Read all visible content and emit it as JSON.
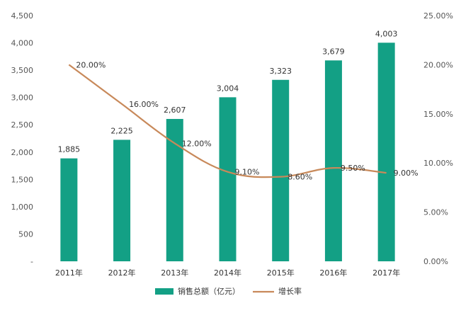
{
  "chart_data": {
    "type": "bar",
    "title": "",
    "categories": [
      "2011年",
      "2012年",
      "2013年",
      "2014年",
      "2015年",
      "2016年",
      "2017年"
    ],
    "series": [
      {
        "name": "销售总额（亿元）",
        "kind": "bar",
        "axis": "left",
        "color": "#13a085",
        "values": [
          1885,
          2225,
          2607,
          3004,
          3323,
          3679,
          4003
        ],
        "labels": [
          "1,885",
          "2,225",
          "2,607",
          "3,004",
          "3,323",
          "3,679",
          "4,003"
        ]
      },
      {
        "name": "增长率",
        "kind": "line",
        "axis": "right",
        "color": "#c8895a",
        "values": [
          20.0,
          16.0,
          12.0,
          9.1,
          8.6,
          9.5,
          9.0
        ],
        "labels": [
          "20.00%",
          "16.00%",
          "12.00%",
          "9.10%",
          "8.60%",
          "9.50%",
          "9.00%"
        ]
      }
    ],
    "left_axis": {
      "ylim": [
        0,
        4500
      ],
      "ticks": [
        "-",
        "500",
        "1,000",
        "1,500",
        "2,000",
        "2,500",
        "3,000",
        "3,500",
        "4,000",
        "4,500"
      ]
    },
    "right_axis": {
      "ylim": [
        0,
        25
      ],
      "ticks": [
        "0.00%",
        "5.00%",
        "10.00%",
        "15.00%",
        "20.00%",
        "25.00%"
      ]
    },
    "legend": {
      "position": "bottom-center",
      "items": [
        "销售总额（亿元）",
        "增长率"
      ]
    },
    "grid": false
  }
}
